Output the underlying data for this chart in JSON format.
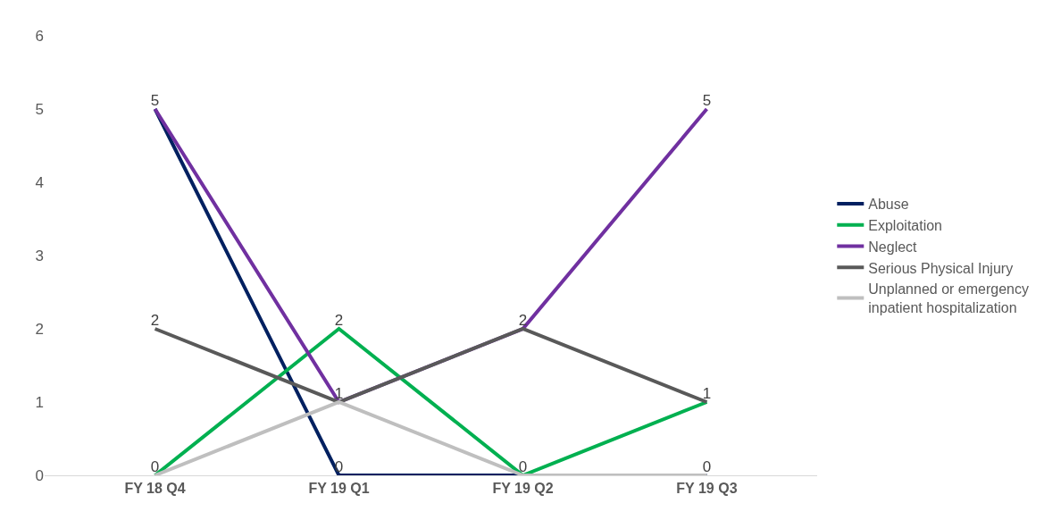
{
  "chart_data": {
    "type": "line",
    "categories": [
      "FY 18 Q4",
      "FY 19 Q1",
      "FY 19 Q2",
      "FY 19 Q3"
    ],
    "series": [
      {
        "name": "Abuse",
        "color": "#002060",
        "values": [
          5,
          0,
          0,
          0
        ],
        "value_labels": [
          "5",
          "0",
          "0",
          "0"
        ]
      },
      {
        "name": "Exploitation",
        "color": "#00b050",
        "values": [
          0,
          2,
          0,
          1
        ],
        "value_labels": [
          "0",
          "2",
          null,
          "1"
        ]
      },
      {
        "name": "Neglect",
        "color": "#7030a0",
        "values": [
          5,
          1,
          2,
          5
        ],
        "value_labels": [
          null,
          "1",
          "2",
          "5"
        ]
      },
      {
        "name": "Serious Physical Injury",
        "color": "#595959",
        "values": [
          2,
          1,
          2,
          1
        ],
        "value_labels": [
          "2",
          null,
          null,
          null
        ]
      },
      {
        "name": "Unplanned or emergency inpatient hospitalization",
        "color": "#bfbfbf",
        "values": [
          0,
          1,
          0,
          0
        ],
        "value_labels": [
          null,
          null,
          null,
          null
        ]
      }
    ],
    "ylim": [
      0,
      6
    ],
    "yticks": [
      0,
      1,
      2,
      3,
      4,
      5,
      6
    ],
    "legend": "right",
    "marker": "none",
    "line_style": "solid"
  }
}
